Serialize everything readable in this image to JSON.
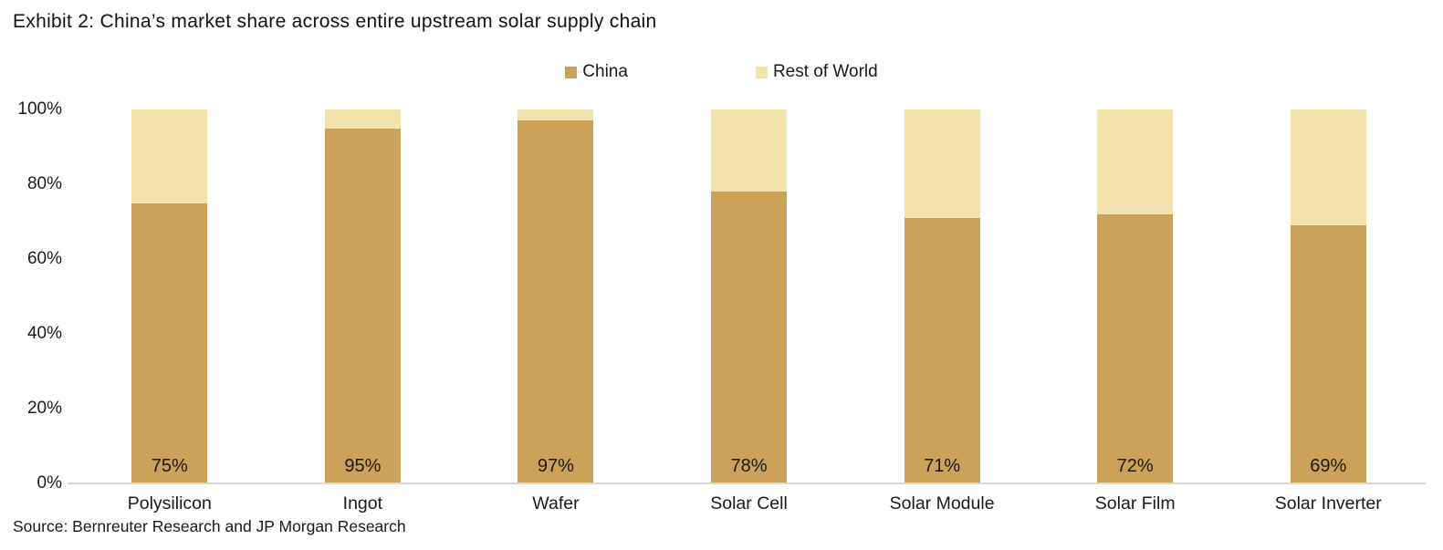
{
  "title": "Exhibit 2: China’s market share across entire upstream solar supply chain",
  "source": "Source: Bernreuter Research and JP Morgan Research",
  "colors": {
    "china": "#CCA15A",
    "rest_of_world": "#F2E2AE",
    "axis_line": "#D9D9D9",
    "text": "#1A1A1A",
    "background": "#FFFFFF"
  },
  "chart_data": {
    "type": "bar",
    "stacked": true,
    "title": "Exhibit 2: China’s market share across entire upstream solar supply chain",
    "categories": [
      "Polysilicon",
      "Ingot",
      "Wafer",
      "Solar Cell",
      "Solar Module",
      "Solar Film",
      "Solar Inverter"
    ],
    "series": [
      {
        "name": "China",
        "color": "#CCA15A",
        "values": [
          75,
          95,
          97,
          78,
          71,
          72,
          69
        ]
      },
      {
        "name": "Rest of World",
        "color": "#F2E2AE",
        "values": [
          25,
          5,
          3,
          22,
          29,
          28,
          31
        ]
      }
    ],
    "data_labels": [
      "75%",
      "95%",
      "97%",
      "78%",
      "71%",
      "72%",
      "69%"
    ],
    "xlabel": "",
    "ylabel": "",
    "ylim": [
      0,
      100
    ],
    "y_ticks": [
      {
        "value": 0,
        "label": "0%"
      },
      {
        "value": 20,
        "label": "20%"
      },
      {
        "value": 40,
        "label": "40%"
      },
      {
        "value": 60,
        "label": "60%"
      },
      {
        "value": 80,
        "label": "80%"
      },
      {
        "value": 100,
        "label": "100%"
      }
    ],
    "grid": false,
    "legend_position": "top-center"
  }
}
